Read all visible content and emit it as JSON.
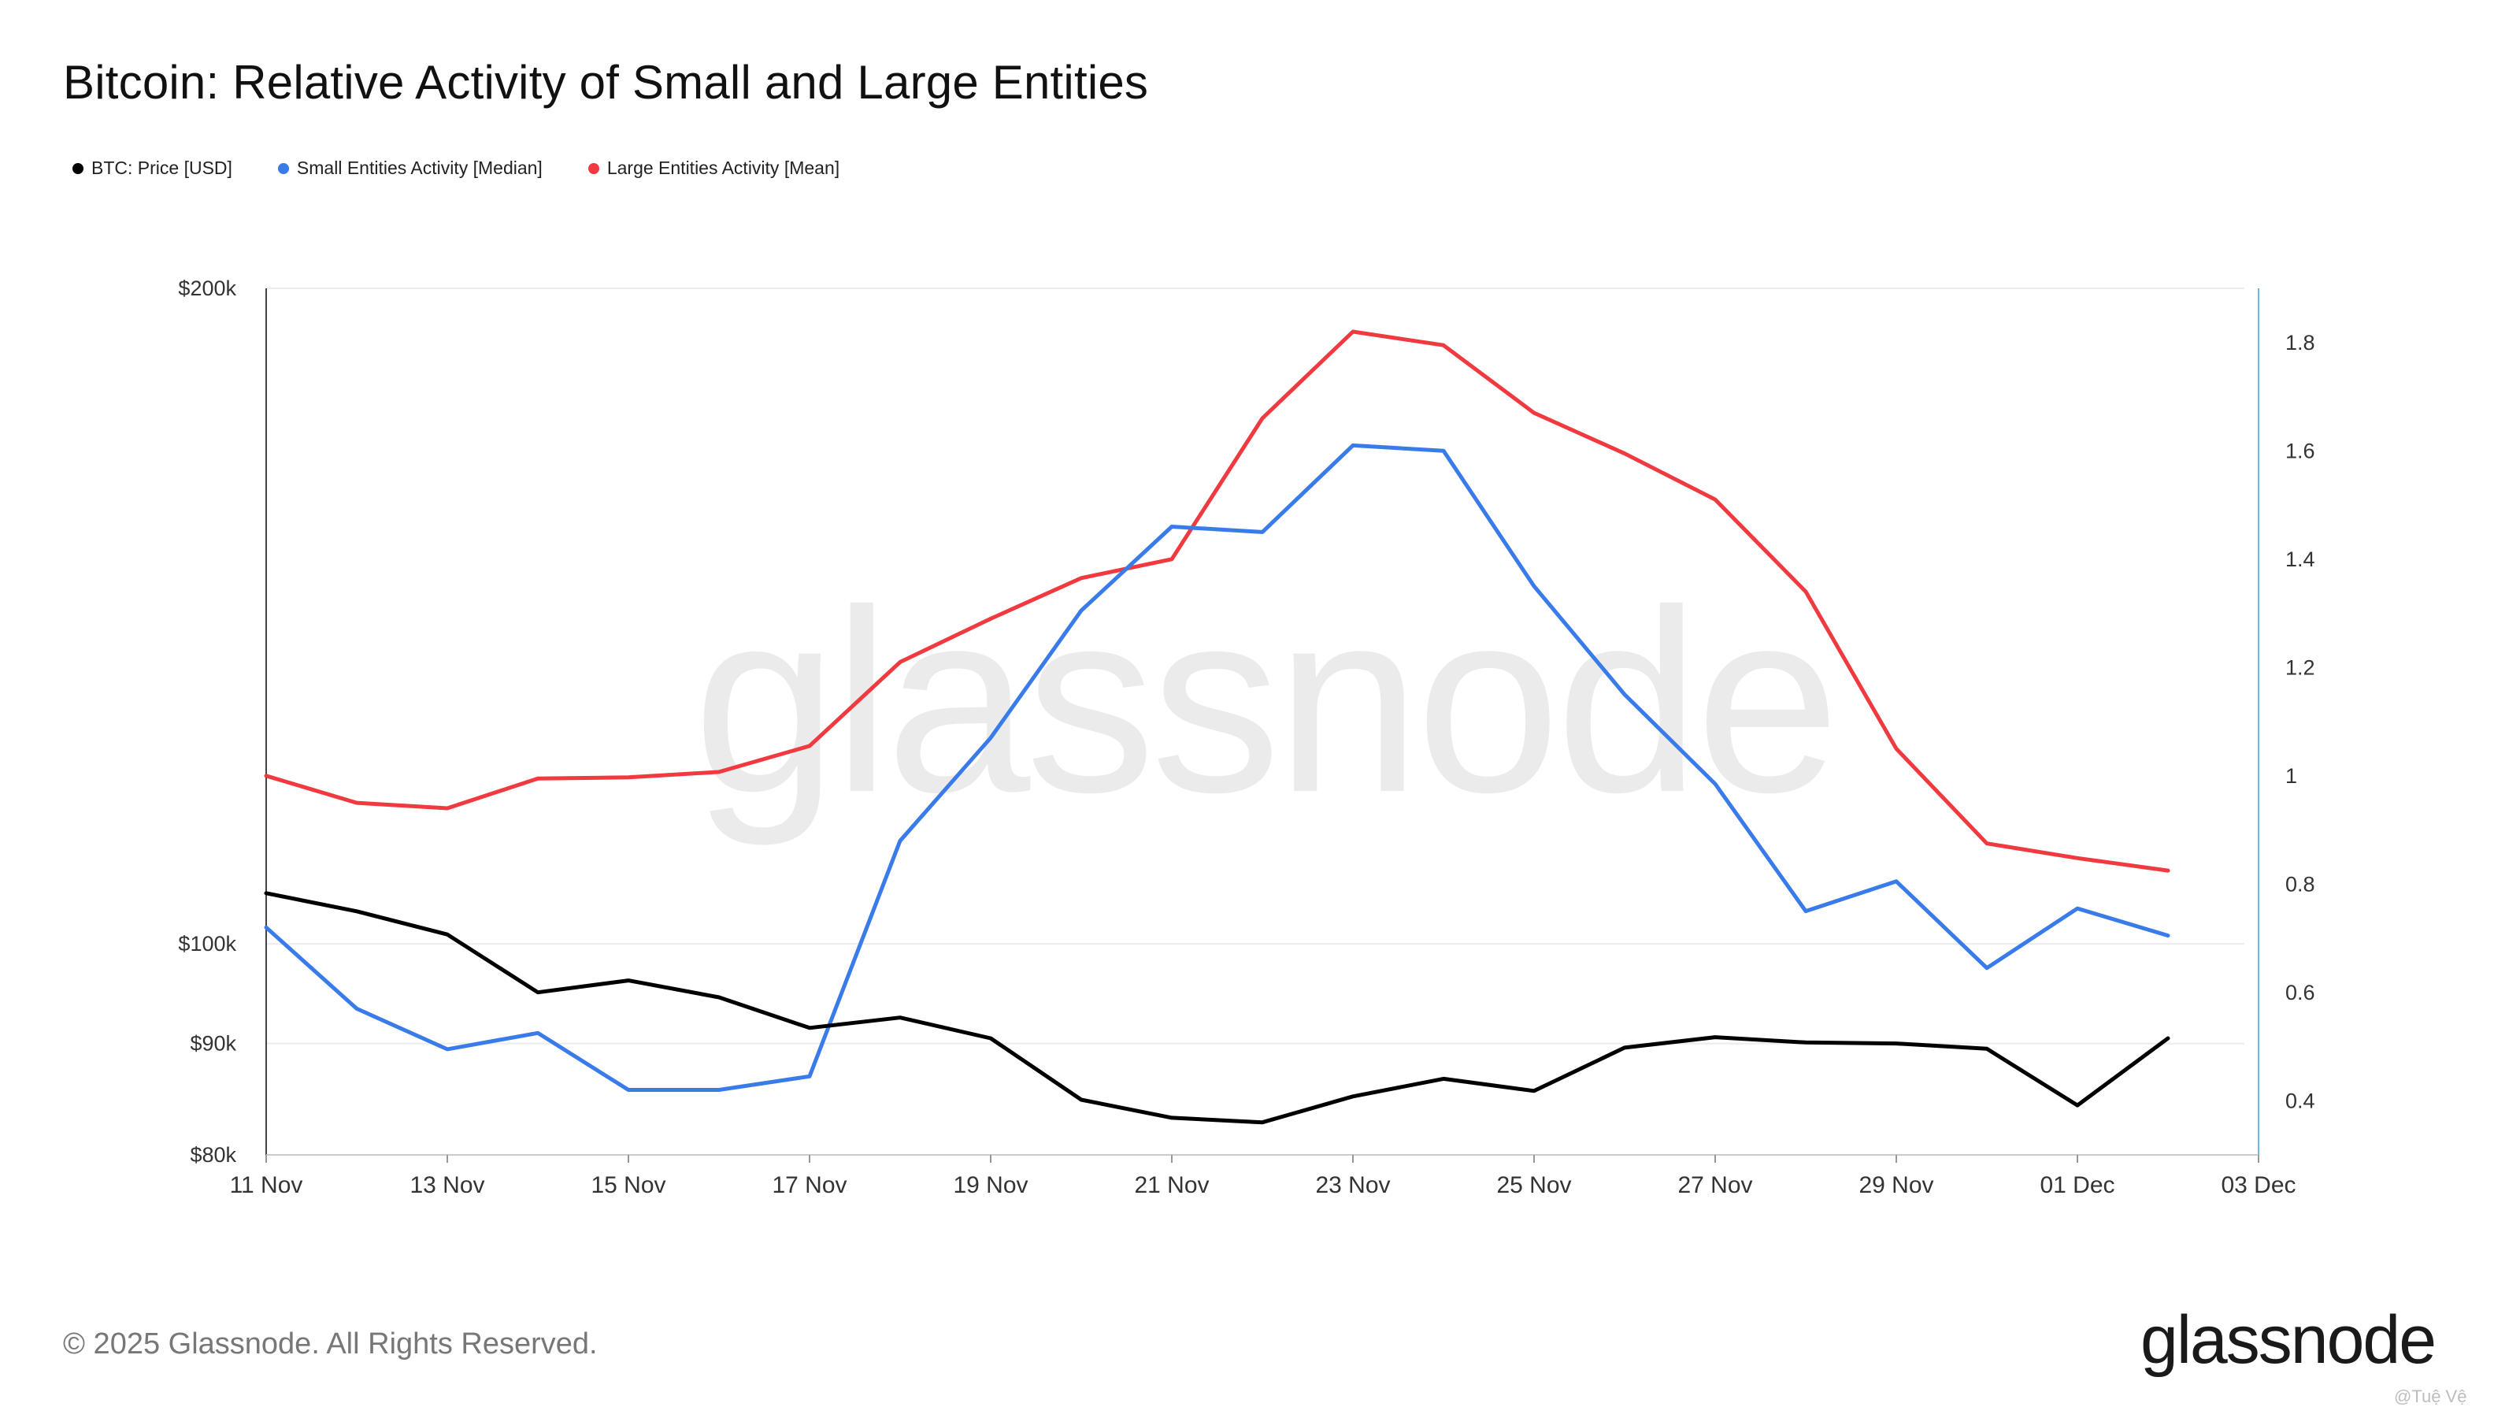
{
  "header": {
    "title": "Bitcoin: Relative Activity of Small and Large Entities"
  },
  "legend": [
    {
      "label": "BTC: Price [USD]",
      "color": "#000000"
    },
    {
      "label": "Small Entities Activity [Median]",
      "color": "#3a7bea"
    },
    {
      "label": "Large Entities Activity [Mean]",
      "color": "#f03a3f"
    }
  ],
  "watermark": "glassnode",
  "footer": {
    "copyright": "© 2025 Glassnode. All Rights Reserved.",
    "logo": "glassnode",
    "handle": "@Tuệ Vệ"
  },
  "chart_data": {
    "type": "line",
    "title": "Bitcoin: Relative Activity of Small and Large Entities",
    "x_ticks": [
      "11 Nov",
      "13 Nov",
      "15 Nov",
      "17 Nov",
      "19 Nov",
      "21 Nov",
      "23 Nov",
      "25 Nov",
      "27 Nov",
      "29 Nov",
      "01 Dec",
      "03 Dec"
    ],
    "x_range": [
      "2025-11-11",
      "2025-12-03"
    ],
    "x": [
      "2025-11-11",
      "2025-11-12",
      "2025-11-13",
      "2025-11-14",
      "2025-11-15",
      "2025-11-16",
      "2025-11-17",
      "2025-11-18",
      "2025-11-19",
      "2025-11-20",
      "2025-11-21",
      "2025-11-22",
      "2025-11-23",
      "2025-11-24",
      "2025-11-25",
      "2025-11-26",
      "2025-11-27",
      "2025-11-28",
      "2025-11-29",
      "2025-11-30",
      "2025-12-01",
      "2025-12-02"
    ],
    "y_left": {
      "scale": "log",
      "range": [
        80000,
        200000
      ],
      "ticks": [
        {
          "value": 200000,
          "label": "$200k"
        },
        {
          "value": 100000,
          "label": "$100k"
        },
        {
          "value": 90000,
          "label": "$90k"
        },
        {
          "value": 80000,
          "label": "$80k"
        }
      ]
    },
    "y_right": {
      "scale": "linear",
      "range": [
        0.3,
        1.9
      ],
      "ticks": [
        {
          "value": 1.8,
          "label": "1.8"
        },
        {
          "value": 1.6,
          "label": "1.6"
        },
        {
          "value": 1.4,
          "label": "1.4"
        },
        {
          "value": 1.2,
          "label": "1.2"
        },
        {
          "value": 1.0,
          "label": "1"
        },
        {
          "value": 0.8,
          "label": "0.8"
        },
        {
          "value": 0.6,
          "label": "0.6"
        },
        {
          "value": 0.4,
          "label": "0.4"
        }
      ]
    },
    "grid": true,
    "legend_position": "top-left",
    "series": [
      {
        "name": "BTC: Price [USD]",
        "axis": "left",
        "color": "#000000",
        "values": [
          105500,
          103500,
          101000,
          95000,
          96200,
          94500,
          91500,
          92500,
          90500,
          84800,
          83200,
          82800,
          85100,
          86700,
          85600,
          89600,
          90600,
          90100,
          90000,
          89500,
          84300,
          90500
        ]
      },
      {
        "name": "Small Entities Activity [Median]",
        "axis": "right",
        "color": "#3a7bea",
        "values": [
          0.72,
          0.57,
          0.495,
          0.525,
          0.42,
          0.42,
          0.445,
          0.88,
          1.07,
          1.305,
          1.46,
          1.45,
          1.61,
          1.6,
          1.35,
          1.15,
          0.985,
          0.75,
          0.805,
          0.645,
          0.755,
          0.705
        ]
      },
      {
        "name": "Large Entities Activity [Mean]",
        "axis": "right",
        "color": "#f03a3f",
        "values": [
          1.0,
          0.95,
          0.94,
          0.995,
          0.997,
          1.007,
          1.055,
          1.21,
          1.29,
          1.365,
          1.4,
          1.66,
          1.82,
          1.795,
          1.67,
          1.595,
          1.51,
          1.34,
          1.05,
          0.875,
          0.848,
          0.825
        ]
      }
    ]
  }
}
